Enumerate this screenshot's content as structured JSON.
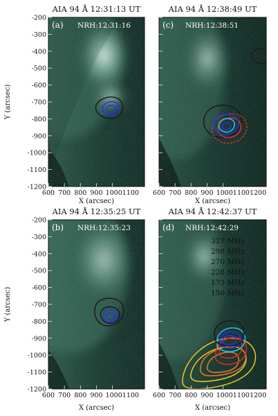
{
  "colors": {
    "c327": "#1a1a1a",
    "c298": "#2233ee",
    "c270": "#28c8e6",
    "c228": "#e02a2a",
    "c173": "#f07828",
    "c150": "#f2c81e"
  },
  "panels": [
    {
      "id": "a",
      "title": "AIA 94 Å 12:31:13 UT",
      "label": "(a)",
      "nrh_time": "NRH:12:31:16",
      "x_ticks": [
        "600",
        "700",
        "800",
        "900",
        "10001100"
      ],
      "y_ticks": [
        "-200",
        "-300",
        "-400",
        "-500",
        "-600",
        "-700",
        "-800",
        "-900",
        "-1000",
        "-1100",
        "-1200"
      ],
      "xlabel": "X (arcsec)",
      "ylabel": "Y (arcsec)"
    },
    {
      "id": "c",
      "title": "AIA 94 Å 12:38:49 UT",
      "label": "(c)",
      "nrh_time": "NRH:12:38:51",
      "x_ticks": [
        "600",
        "700",
        "800",
        "900",
        "100011001200"
      ],
      "y_ticks": [],
      "xlabel": "X (arcsec)",
      "ylabel": ""
    },
    {
      "id": "b",
      "title": "AIA 94 Å 12:35:25 UT",
      "label": "(b)",
      "nrh_time": "NRH:12:35:23",
      "x_ticks": [
        "600",
        "700",
        "800",
        "900",
        "10001100"
      ],
      "y_ticks": [
        "-200",
        "-300",
        "-400",
        "-500",
        "-600",
        "-700",
        "-800",
        "-900",
        "-1000",
        "-1100",
        "-1200"
      ],
      "xlabel": "X (arcsec)",
      "ylabel": "Y (arcsec)"
    },
    {
      "id": "d",
      "title": "AIA 94 Å 12:42:37 UT",
      "label": "(d)",
      "nrh_time": "NRH:12:42:29",
      "x_ticks": [
        "600",
        "700",
        "800",
        "900",
        "100011001200"
      ],
      "y_ticks": [],
      "xlabel": "X (arcsec)",
      "ylabel": ""
    }
  ],
  "legend": [
    {
      "label": "327 MHz",
      "color": "#1a1a1a"
    },
    {
      "label": "298 MHz",
      "color": "#2233ee"
    },
    {
      "label": "270 MHz",
      "color": "#28c8e6"
    },
    {
      "label": "228 MHz",
      "color": "#e02a2a"
    },
    {
      "label": "173 MHz",
      "color": "#f07828"
    },
    {
      "label": "150 MHz",
      "color": "#f2c81e"
    }
  ]
}
